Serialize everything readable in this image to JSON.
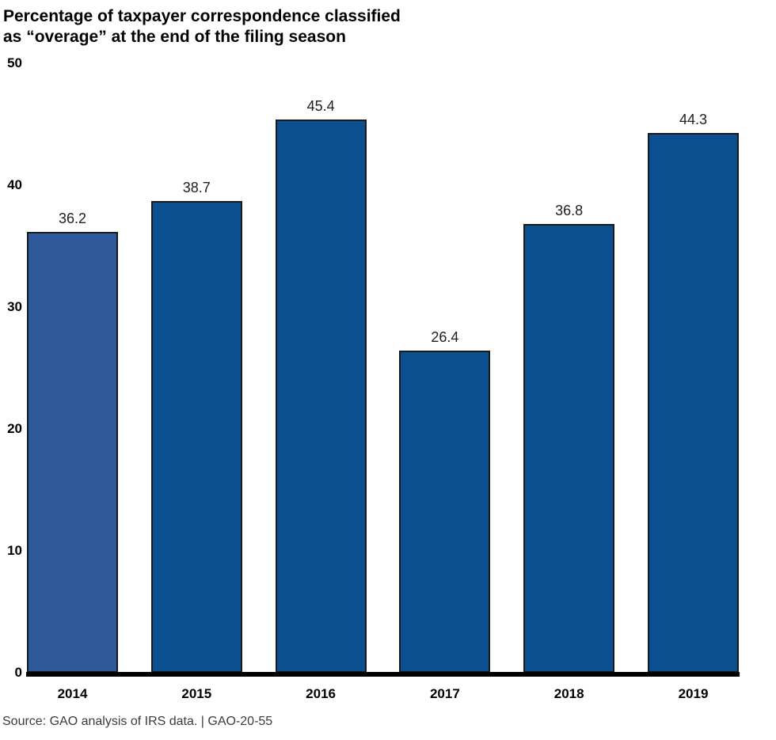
{
  "chart_data": {
    "type": "bar",
    "title": "Percentage of taxpayer correspondence classified as “overage” at the end of the filing season",
    "title_lines": [
      "Percentage of taxpayer correspondence classified",
      "as “overage” at the end of the filing season"
    ],
    "categories": [
      "2014",
      "2015",
      "2016",
      "2017",
      "2018",
      "2019"
    ],
    "values": [
      36.2,
      38.7,
      45.4,
      26.4,
      36.8,
      44.3
    ],
    "value_labels": [
      "36.2",
      "38.7",
      "45.4",
      "26.4",
      "36.8",
      "44.3"
    ],
    "xlabel": "",
    "ylabel": "",
    "ylim": [
      0,
      50
    ],
    "yticks": [
      0,
      10,
      20,
      30,
      40,
      50
    ],
    "grid": false,
    "legend": false,
    "bar_colors": [
      "#2E5A9B",
      "#0B4F91",
      "#0B4F91",
      "#0B4F91",
      "#0B4F91",
      "#0B4F91"
    ],
    "bar_border_color": "#1A1A1A",
    "axis_color": "#000000"
  },
  "footer": {
    "source": "Source: GAO analysis of IRS data. | GAO-20-55"
  }
}
